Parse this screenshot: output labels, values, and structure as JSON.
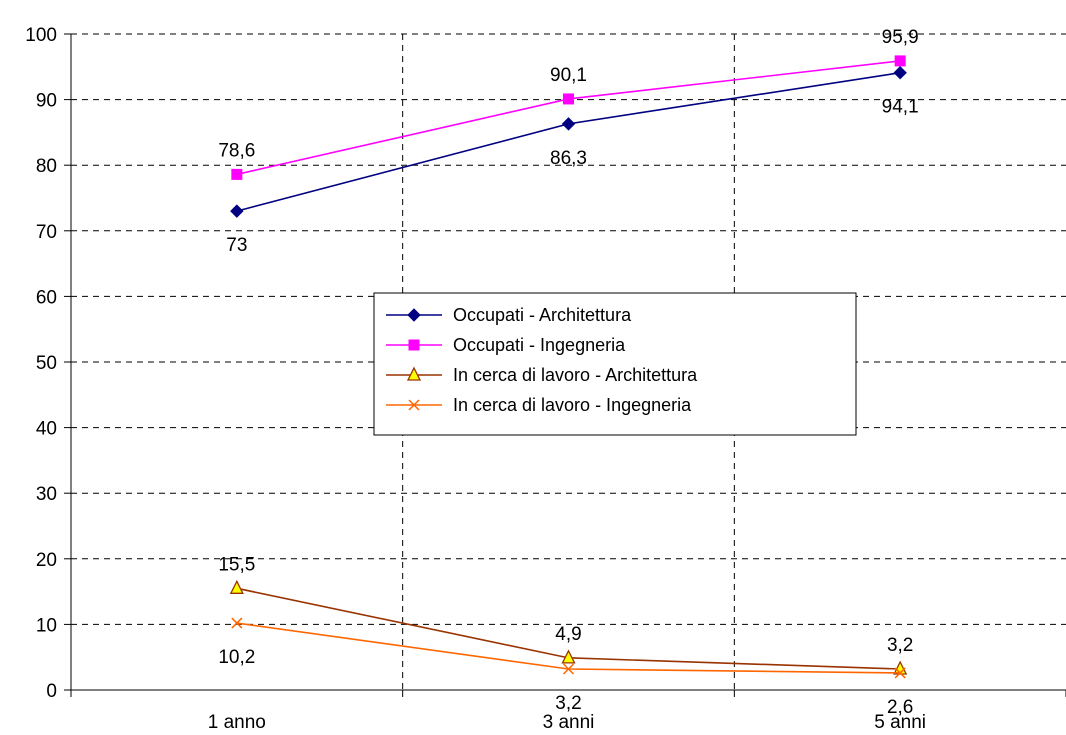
{
  "chart_data": {
    "type": "line",
    "categories": [
      "1 anno",
      "3 anni",
      "5 anni"
    ],
    "ylim": [
      0,
      100
    ],
    "yticks": [
      0,
      10,
      20,
      30,
      40,
      50,
      60,
      70,
      80,
      90,
      100
    ],
    "grid": true,
    "legend_position": "center",
    "series": [
      {
        "name": "Occupati - Architettura",
        "values": [
          73,
          86.3,
          94.1
        ],
        "labels": [
          "73",
          "86,3",
          "94,1"
        ],
        "color": "#000080",
        "marker": "diamond",
        "label_side": "below"
      },
      {
        "name": "Occupati - Ingegneria",
        "values": [
          78.6,
          90.1,
          95.9
        ],
        "labels": [
          "78,6",
          "90,1",
          "95,9"
        ],
        "color": "#ff00ff",
        "marker": "square",
        "label_side": "above"
      },
      {
        "name": "In cerca di lavoro - Architettura",
        "values": [
          15.5,
          4.9,
          3.2
        ],
        "labels": [
          "15,5",
          "4,9",
          "3,2"
        ],
        "color": "#993300",
        "marker": "triangle",
        "marker_fill": "#ffff00",
        "label_side": "above"
      },
      {
        "name": "In cerca di lavoro - Ingegneria",
        "values": [
          10.2,
          3.2,
          2.6
        ],
        "labels": [
          "10,2",
          "3,2",
          "2,6"
        ],
        "color": "#ff6600",
        "marker": "x",
        "label_side": "below"
      }
    ]
  }
}
